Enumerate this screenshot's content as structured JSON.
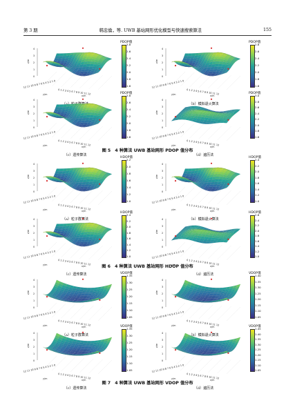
{
  "header": {
    "issue": "第 3 期",
    "title": "韩忠倫，等. UWB 基站网形优化模型与快速搜索算法",
    "page": "155"
  },
  "axis_labels": {
    "z": "z/m",
    "x": "x/m",
    "y": "y/m",
    "x_ticks": "0 1 2 3 4 5 6 7 8 9 10 11 12",
    "y_ticks": "12 11 10 9 8 7 6 5 4 3 2 1 0",
    "z_ticks": [
      "4",
      "3",
      "2",
      "1",
      "0"
    ]
  },
  "figures": [
    {
      "caption": "图 5　4 种算法 UWB 基站网形 PDOP 值分布",
      "panels": [
        {
          "caption": "（a）粒子群算法",
          "cb_title": "PDOP值",
          "ticks": [
            "2.8",
            "2.6",
            "2.4",
            "2.2",
            "2.0",
            "1.8",
            "1.6"
          ],
          "style": "wave"
        },
        {
          "caption": "（b）模拟退火算法",
          "cb_title": "PDOP值",
          "ticks": [
            "2.8",
            "2.6",
            "2.4",
            "2.2",
            "2.0",
            "1.8",
            "1.6"
          ],
          "style": "wave"
        },
        {
          "caption": "（c）遗传算法",
          "cb_title": "PDOP值",
          "ticks": [
            "2.8",
            "2.6",
            "2.4",
            "2.2",
            "2.0",
            "1.8",
            "1.6"
          ],
          "style": "wave"
        },
        {
          "caption": "（d）遍历法",
          "cb_title": "PDOP值",
          "ticks": [
            "3.0",
            "2.8",
            "2.6",
            "2.4",
            "2.2",
            "2.0",
            "1.8",
            "1.6"
          ],
          "style": "peak"
        }
      ]
    },
    {
      "caption": "图 6　4 种算法 UWB 基站网形 HDOP 值分布",
      "panels": [
        {
          "caption": "（a）粒子群算法",
          "cb_title": "HDOP值",
          "ticks": [
            "2.2",
            "2.0",
            "1.8",
            "1.6",
            "1.4",
            "1.2",
            "1.0"
          ],
          "style": "wave"
        },
        {
          "caption": "（b）模拟退火算法",
          "cb_title": "HDOP值",
          "ticks": [
            "2.4",
            "2.2",
            "2.0",
            "1.8",
            "1.6",
            "1.4",
            "1.2",
            "1.0"
          ],
          "style": "wave"
        },
        {
          "caption": "（c）遗传算法",
          "cb_title": "HDOP值",
          "ticks": [
            "2.4",
            "2.2",
            "2.0",
            "1.8",
            "1.6",
            "1.4",
            "1.2",
            "1.0"
          ],
          "style": "wave"
        },
        {
          "caption": "（d）遍历法",
          "cb_title": "HDOP值",
          "ticks": [
            "2.6",
            "2.4",
            "2.2",
            "2.0",
            "1.8",
            "1.6",
            "1.4",
            "1.2",
            "1.0"
          ],
          "style": "peak"
        }
      ]
    },
    {
      "caption": "图 7　4 种算法 UWB 基站网形 VDOP 值分布",
      "panels": [
        {
          "caption": "（a）粒子群算法",
          "cb_title": "VDOP值",
          "ticks": [
            "1.35",
            "1.30",
            "1.25",
            "1.20",
            "1.15",
            "1.10",
            "1.05"
          ],
          "style": "flat"
        },
        {
          "caption": "（b）模拟退火算法",
          "cb_title": "VDOP值",
          "ticks": [
            "1.40",
            "1.35",
            "1.30",
            "1.25",
            "1.20",
            "1.15",
            "1.10",
            "1.05"
          ],
          "style": "flat"
        },
        {
          "caption": "（c）遗传算法",
          "cb_title": "VDOP值",
          "ticks": [
            "1.35",
            "1.30",
            "1.25",
            "1.20",
            "1.15",
            "1.10",
            "1.05"
          ],
          "style": "flat"
        },
        {
          "caption": "（d）遍历法",
          "cb_title": "VDOP值",
          "ticks": [
            "1.45",
            "1.40",
            "1.35",
            "1.30",
            "1.25",
            "1.20",
            "1.15",
            "1.10",
            "1.05"
          ],
          "style": "flat"
        }
      ]
    }
  ],
  "colors": {
    "low": "#3b2c84",
    "mid": "#23a39b",
    "high": "#f2e51f",
    "station_marker": "#d62728"
  }
}
